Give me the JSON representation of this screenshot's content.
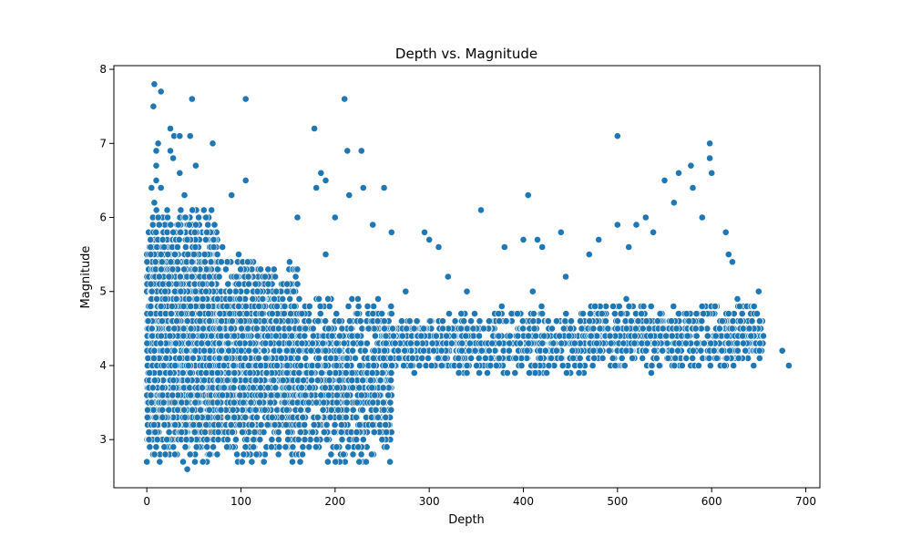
{
  "chart_data": {
    "type": "scatter",
    "title": "Depth vs. Magnitude",
    "xlabel": "Depth",
    "ylabel": "Magnitude",
    "xlim": [
      -35,
      715
    ],
    "ylim": [
      2.35,
      8.05
    ],
    "xticks": [
      0,
      100,
      200,
      300,
      400,
      500,
      600,
      700
    ],
    "yticks": [
      3,
      4,
      5,
      6,
      7,
      8
    ],
    "grid": false,
    "legend": "none",
    "marker_color": "#1f77b4",
    "marker_edge": "#ffffff",
    "series": [
      {
        "points": [
          [
            8,
            7.8
          ],
          [
            15,
            7.7
          ],
          [
            48,
            7.6
          ],
          [
            105,
            7.6
          ],
          [
            210,
            7.6
          ],
          [
            7,
            7.5
          ],
          [
            25,
            7.2
          ],
          [
            178,
            7.2
          ],
          [
            29,
            7.1
          ],
          [
            46,
            7.1
          ],
          [
            35,
            7.1
          ],
          [
            500,
            7.1
          ],
          [
            12,
            7.0
          ],
          [
            70,
            7.0
          ],
          [
            598,
            7.0
          ],
          [
            10,
            6.9
          ],
          [
            25,
            6.9
          ],
          [
            213,
            6.9
          ],
          [
            228,
            6.9
          ],
          [
            598,
            6.8
          ],
          [
            28,
            6.8
          ],
          [
            52,
            6.7
          ],
          [
            578,
            6.7
          ],
          [
            10,
            6.7
          ],
          [
            185,
            6.6
          ],
          [
            35,
            6.6
          ],
          [
            565,
            6.6
          ],
          [
            600,
            6.6
          ],
          [
            190,
            6.5
          ],
          [
            5,
            6.4
          ],
          [
            15,
            6.4
          ],
          [
            40,
            6.3
          ],
          [
            8,
            6.2
          ],
          [
            90,
            6.3
          ],
          [
            105,
            6.5
          ],
          [
            180,
            6.4
          ],
          [
            230,
            6.4
          ],
          [
            252,
            6.4
          ],
          [
            215,
            6.3
          ],
          [
            405,
            6.3
          ],
          [
            10,
            6.5
          ],
          [
            550,
            6.5
          ],
          [
            580,
            6.4
          ],
          [
            355,
            6.1
          ],
          [
            160,
            6.0
          ],
          [
            200,
            6.0
          ],
          [
            240,
            5.9
          ],
          [
            295,
            5.8
          ],
          [
            310,
            5.6
          ],
          [
            380,
            5.6
          ],
          [
            400,
            5.7
          ],
          [
            415,
            5.7
          ],
          [
            440,
            5.8
          ],
          [
            470,
            5.5
          ],
          [
            480,
            5.7
          ],
          [
            500,
            5.9
          ],
          [
            512,
            5.6
          ],
          [
            520,
            5.9
          ],
          [
            530,
            6.0
          ],
          [
            538,
            5.8
          ],
          [
            560,
            6.2
          ],
          [
            590,
            6.0
          ],
          [
            615,
            5.8
          ],
          [
            618,
            5.5
          ],
          [
            622,
            5.4
          ],
          [
            410,
            5.0
          ],
          [
            420,
            5.6
          ],
          [
            445,
            5.2
          ],
          [
            300,
            5.7
          ],
          [
            190,
            5.5
          ],
          [
            260,
            5.8
          ],
          [
            275,
            5.0
          ],
          [
            320,
            5.2
          ],
          [
            340,
            5.0
          ]
        ]
      }
    ],
    "clusters": [
      {
        "x0": 0,
        "x1": 75,
        "y0": 2.6,
        "y1": 6.2,
        "n": 2600
      },
      {
        "x0": 75,
        "x1": 160,
        "y0": 2.6,
        "y1": 5.6,
        "n": 1400
      },
      {
        "x0": 160,
        "x1": 260,
        "y0": 2.6,
        "y1": 5.0,
        "n": 900
      },
      {
        "x0": 250,
        "x1": 340,
        "y0": 3.9,
        "y1": 4.7,
        "n": 350
      },
      {
        "x0": 330,
        "x1": 470,
        "y0": 3.8,
        "y1": 4.8,
        "n": 420
      },
      {
        "x0": 470,
        "x1": 655,
        "y0": 3.9,
        "y1": 4.9,
        "n": 650
      }
    ]
  }
}
